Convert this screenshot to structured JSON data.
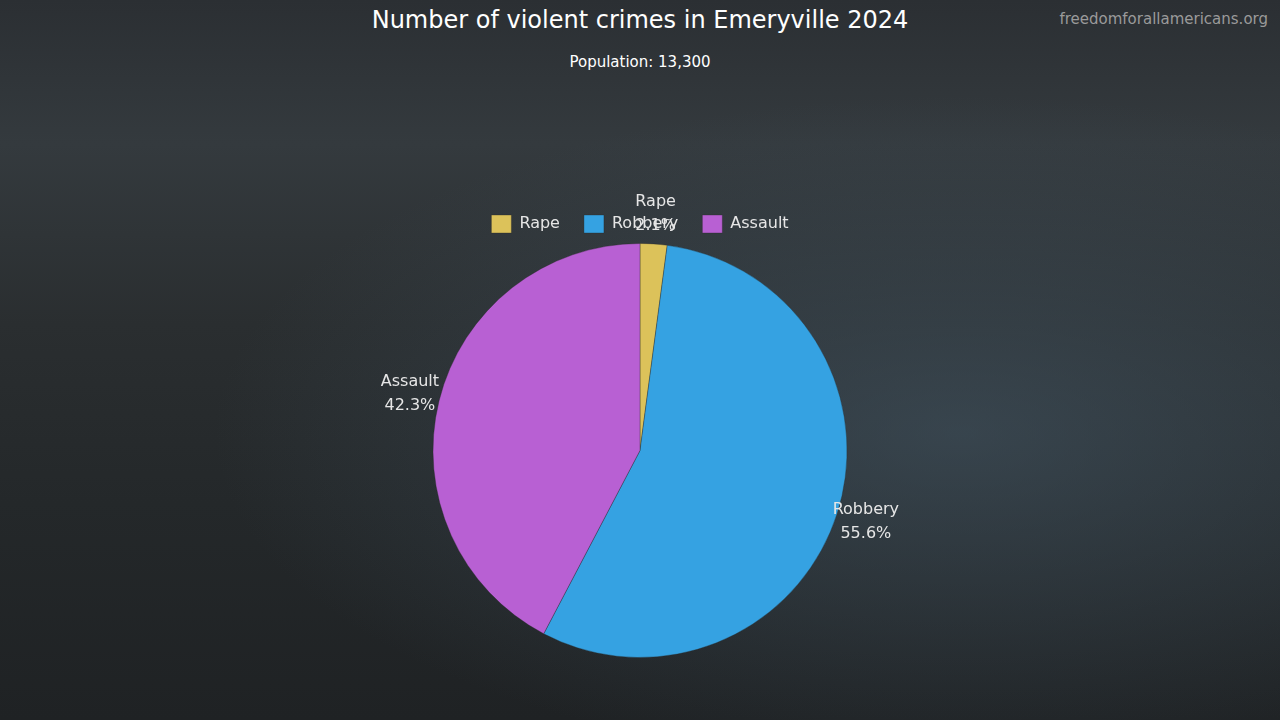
{
  "chart_data": {
    "type": "pie",
    "title": "Number of violent crimes in Emeryville 2024",
    "subtitle": "Population: 13,300",
    "annotations": [
      "freedomforallamericans.org"
    ],
    "categories": [
      "Rape",
      "Robbery",
      "Assault"
    ],
    "values": [
      2.1,
      55.6,
      42.3
    ],
    "value_labels": [
      "2.1%",
      "55.6%",
      "42.3%"
    ],
    "colors": [
      "#dcc25a",
      "#35a2e2",
      "#b860d3"
    ],
    "legend": "top",
    "data_labels": true
  }
}
